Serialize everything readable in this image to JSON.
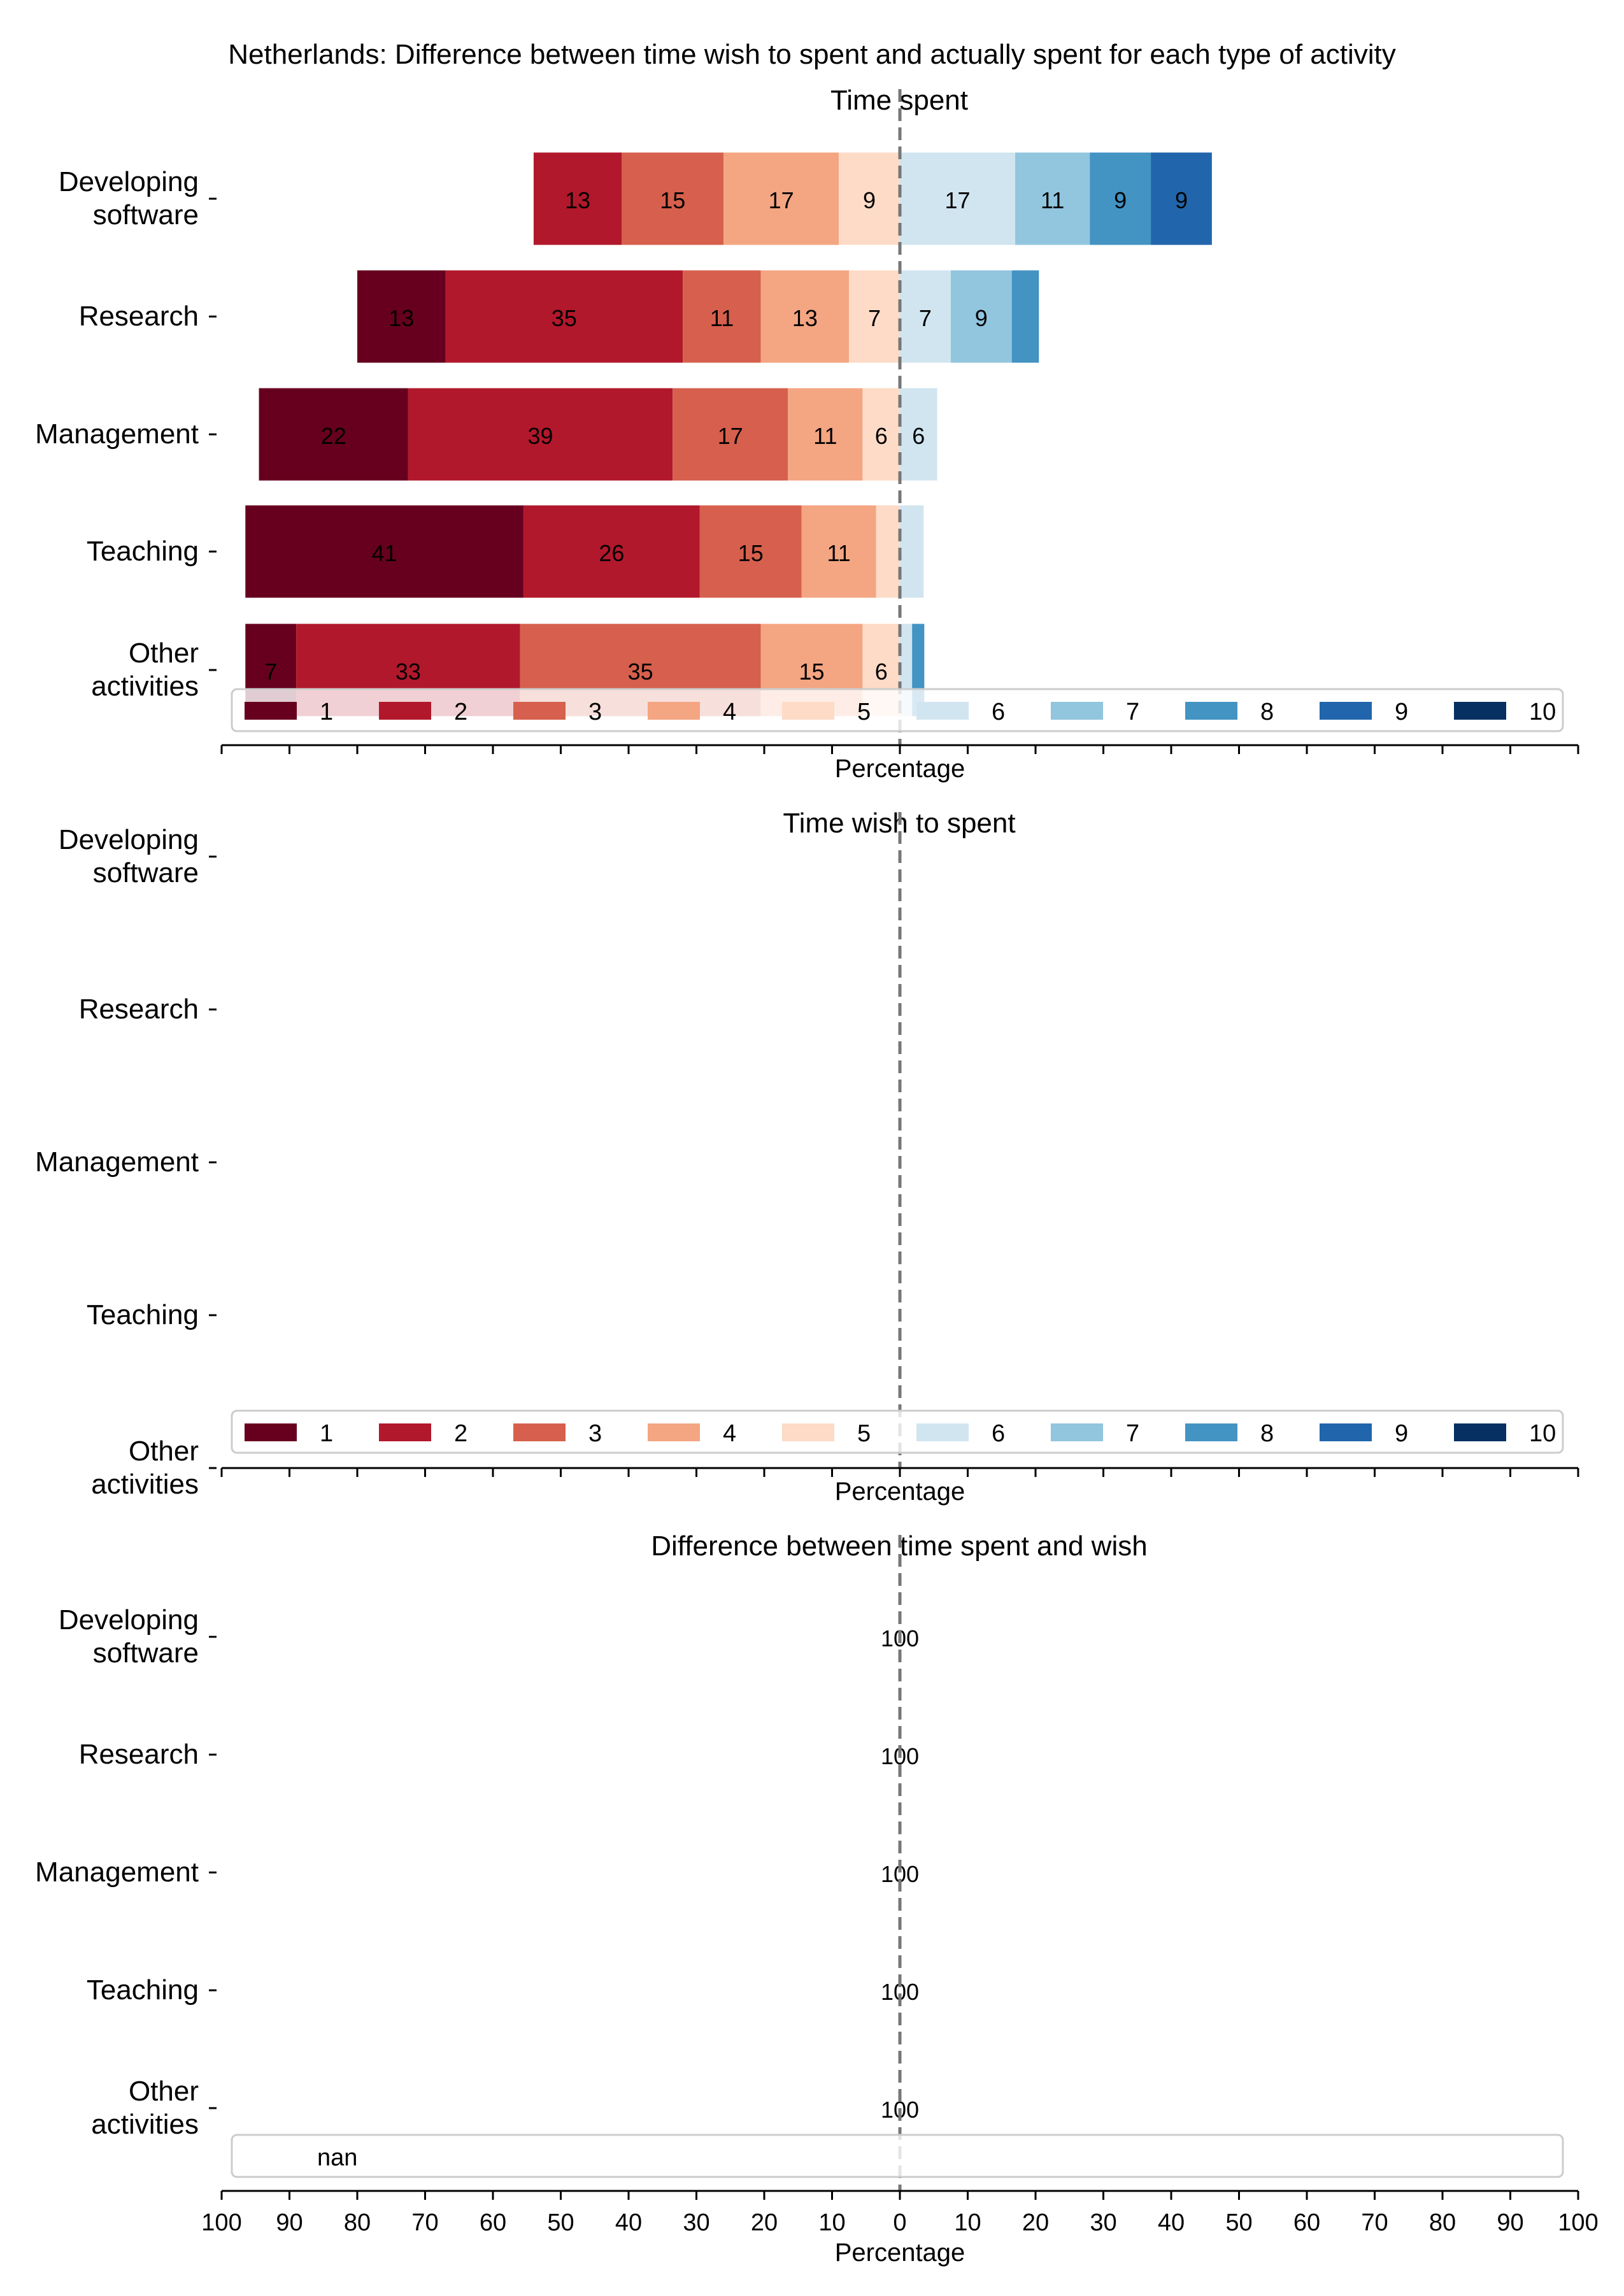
{
  "figure": {
    "title": "Netherlands: Difference between time wish to spent and actually spent for each type of activity"
  },
  "chart_data": [
    {
      "type": "bar",
      "orientation": "horizontal-diverging",
      "title": "Time spent",
      "xlabel": "Percentage",
      "xlim": [
        -100,
        100
      ],
      "x_tick_labels_shown": false,
      "categories": [
        "Developing\nsoftware",
        "Research",
        "Management",
        "Teaching",
        "Other\nactivities"
      ],
      "legend": {
        "placement": "bottom",
        "entries": [
          "1",
          "2",
          "3",
          "4",
          "5",
          "6",
          "7",
          "8",
          "9",
          "10"
        ]
      },
      "series": [
        {
          "name": "1",
          "values": [
            0,
            13,
            22,
            41,
            7
          ]
        },
        {
          "name": "2",
          "values": [
            0,
            35,
            39,
            26,
            33
          ]
        },
        {
          "name": "3",
          "values": [
            13,
            11,
            17,
            15,
            35
          ]
        },
        {
          "name": "4",
          "values": [
            15,
            13,
            11,
            11,
            15
          ]
        },
        {
          "name": "5",
          "values": [
            17,
            7,
            6,
            4,
            6
          ]
        },
        {
          "name": "6",
          "values": [
            9,
            7,
            6,
            4,
            0
          ]
        },
        {
          "name": "7",
          "values": [
            17,
            9,
            0,
            0,
            2
          ]
        },
        {
          "name": "8",
          "values": [
            11,
            4,
            0,
            0,
            2
          ]
        },
        {
          "name": "9",
          "values": [
            9,
            0,
            0,
            0,
            0
          ]
        },
        {
          "name": "10",
          "values": [
            9,
            0,
            0,
            0,
            0
          ]
        }
      ],
      "segment_colors": [
        "#d6e5f0",
        "#a9cfe5",
        "#529fcc",
        "#2065ab"
      ],
      "bar_segments": [
        [
          {
            "start": -54,
            "end": -41,
            "color": "#b2182b",
            "label": "13"
          },
          {
            "start": -41,
            "end": -26,
            "color": "#d6604d",
            "label": "15"
          },
          {
            "start": -26,
            "end": -9,
            "color": "#f4a582",
            "label": "17"
          },
          {
            "start": -9,
            "end": 0,
            "color": "#fddbc7",
            "label": "9"
          },
          {
            "start": 0,
            "end": 17,
            "color": "#d1e5f0",
            "label": "17"
          },
          {
            "start": 17,
            "end": 28,
            "color": "#92c5de",
            "label": "11"
          },
          {
            "start": 28,
            "end": 37,
            "color": "#4393c3",
            "label": "9"
          },
          {
            "start": 37,
            "end": 46,
            "color": "#2166ac",
            "label": "9"
          }
        ],
        [
          {
            "start": -80,
            "end": -67,
            "color": "#67001f",
            "label": "13"
          },
          {
            "start": -67,
            "end": -32,
            "color": "#b2182b",
            "label": "35"
          },
          {
            "start": -32,
            "end": -20.5,
            "color": "#d6604d",
            "label": "11"
          },
          {
            "start": -20.5,
            "end": -7.5,
            "color": "#f4a582",
            "label": "13"
          },
          {
            "start": -7.5,
            "end": 0,
            "color": "#fddbc7",
            "label": "7"
          },
          {
            "start": 0,
            "end": 7.5,
            "color": "#d1e5f0",
            "label": "7"
          },
          {
            "start": 7.5,
            "end": 16.5,
            "color": "#92c5de",
            "label": "9"
          },
          {
            "start": 16.5,
            "end": 20.5,
            "color": "#4393c3",
            "label": ""
          }
        ],
        [
          {
            "start": -94.5,
            "end": -72.5,
            "color": "#67001f",
            "label": "22"
          },
          {
            "start": -72.5,
            "end": -33.5,
            "color": "#b2182b",
            "label": "39"
          },
          {
            "start": -33.5,
            "end": -16.5,
            "color": "#d6604d",
            "label": "17"
          },
          {
            "start": -16.5,
            "end": -5.5,
            "color": "#f4a582",
            "label": "11"
          },
          {
            "start": -5.5,
            "end": 0,
            "color": "#fddbc7",
            "label": "6"
          },
          {
            "start": 0,
            "end": 5.5,
            "color": "#d1e5f0",
            "label": "6"
          }
        ],
        [
          {
            "start": -96.5,
            "end": -55.5,
            "color": "#67001f",
            "label": "41"
          },
          {
            "start": -55.5,
            "end": -29.5,
            "color": "#b2182b",
            "label": "26"
          },
          {
            "start": -29.5,
            "end": -14.5,
            "color": "#d6604d",
            "label": "15"
          },
          {
            "start": -14.5,
            "end": -3.5,
            "color": "#f4a582",
            "label": "11"
          },
          {
            "start": -3.5,
            "end": 0,
            "color": "#fddbc7",
            "label": ""
          },
          {
            "start": 0,
            "end": 3.5,
            "color": "#d1e5f0",
            "label": ""
          }
        ],
        [
          {
            "start": -96.5,
            "end": -89,
            "color": "#67001f",
            "label": "7"
          },
          {
            "start": -89,
            "end": -56,
            "color": "#b2182b",
            "label": "33"
          },
          {
            "start": -56,
            "end": -20.5,
            "color": "#d6604d",
            "label": "35"
          },
          {
            "start": -20.5,
            "end": -5.5,
            "color": "#f4a582",
            "label": "15"
          },
          {
            "start": -5.5,
            "end": 0,
            "color": "#fddbc7",
            "label": "6"
          },
          {
            "start": 0,
            "end": 1.8,
            "color": "#d1e5f0",
            "label": ""
          },
          {
            "start": 1.8,
            "end": 3.6,
            "color": "#4393c3",
            "label": ""
          }
        ]
      ],
      "legend_colors": [
        "#67001f",
        "#b2182b",
        "#d6604d",
        "#f4a582",
        "#fddbc7",
        "#d1e5f0",
        "#92c5de",
        "#4393c3",
        "#2166ac",
        "#053061"
      ]
    },
    {
      "type": "bar",
      "orientation": "horizontal-diverging",
      "title": "Time wish to spent",
      "xlabel": "Percentage",
      "xlim": [
        -100,
        100
      ],
      "x_tick_labels_shown": false,
      "categories": [
        "Developing\nsoftware",
        "Research",
        "Management",
        "Teaching",
        "Other\nactivities"
      ],
      "legend": {
        "placement": "bottom",
        "entries": [
          "1",
          "2",
          "3",
          "4",
          "5",
          "6",
          "7",
          "8",
          "9",
          "10"
        ]
      },
      "series": [],
      "bar_segments": [
        [],
        [],
        [],
        [],
        []
      ]
    },
    {
      "type": "bar",
      "orientation": "horizontal-diverging",
      "title": "Difference between time spent and wish",
      "xlabel": "Percentage",
      "xlim": [
        -100,
        100
      ],
      "x_tick_labels_shown": true,
      "x_tick_labels": [
        "100",
        "90",
        "80",
        "70",
        "60",
        "50",
        "40",
        "30",
        "20",
        "10",
        "0",
        "10",
        "20",
        "30",
        "40",
        "50",
        "60",
        "70",
        "80",
        "90",
        "100"
      ],
      "categories": [
        "Developing\nsoftware",
        "Research",
        "Management",
        "Teaching",
        "Other\nactivities"
      ],
      "data_labels": [
        "100",
        "100",
        "100",
        "100",
        "100"
      ],
      "legend": {
        "placement": "bottom",
        "entries": [
          "nan"
        ]
      },
      "series": [
        {
          "name": "nan",
          "values": [
            100,
            100,
            100,
            100,
            100
          ]
        }
      ]
    }
  ]
}
